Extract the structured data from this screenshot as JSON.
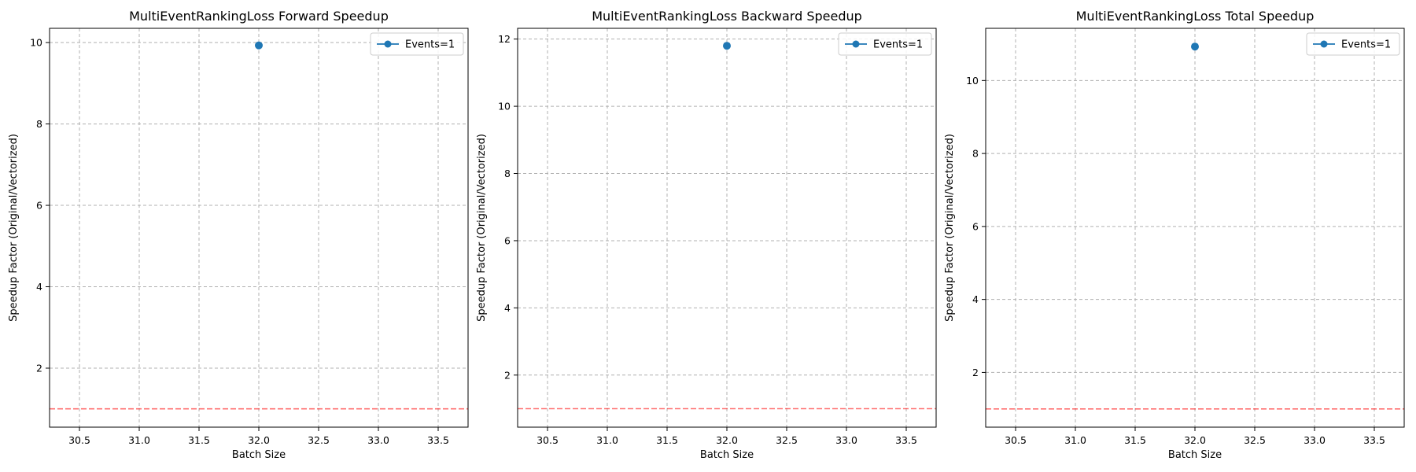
{
  "chart_data": [
    {
      "type": "line",
      "title": "MultiEventRankingLoss Forward Speedup",
      "xlabel": "Batch Size",
      "ylabel": "Speedup Factor (Original/Vectorized)",
      "xlim": [
        30.25,
        33.75
      ],
      "ylim": [
        0.55,
        10.35
      ],
      "xticks": [
        "30.5",
        "31.0",
        "31.5",
        "32.0",
        "32.5",
        "33.0",
        "33.5"
      ],
      "yticks": [
        "2",
        "4",
        "6",
        "8",
        "10"
      ],
      "grid": true,
      "legend_position": "top-right",
      "reference_line": {
        "y": 1.0,
        "color": "#ff0000",
        "style": "dashed"
      },
      "series": [
        {
          "name": "Events=1",
          "color": "#1f77b4",
          "x": [
            32
          ],
          "y": [
            9.93
          ]
        }
      ]
    },
    {
      "type": "line",
      "title": "MultiEventRankingLoss Backward Speedup",
      "xlabel": "Batch Size",
      "ylabel": "Speedup Factor (Original/Vectorized)",
      "xlim": [
        30.25,
        33.75
      ],
      "ylim": [
        0.45,
        12.32
      ],
      "xticks": [
        "30.5",
        "31.0",
        "31.5",
        "32.0",
        "32.5",
        "33.0",
        "33.5"
      ],
      "yticks": [
        "2",
        "4",
        "6",
        "8",
        "10",
        "12"
      ],
      "grid": true,
      "legend_position": "top-right",
      "reference_line": {
        "y": 1.0,
        "color": "#ff0000",
        "style": "dashed"
      },
      "series": [
        {
          "name": "Events=1",
          "color": "#1f77b4",
          "x": [
            32
          ],
          "y": [
            11.8
          ]
        }
      ]
    },
    {
      "type": "line",
      "title": "MultiEventRankingLoss Total Speedup",
      "xlabel": "Batch Size",
      "ylabel": "Speedup Factor (Original/Vectorized)",
      "xlim": [
        30.25,
        33.75
      ],
      "ylim": [
        0.5,
        11.43
      ],
      "xticks": [
        "30.5",
        "31.0",
        "31.5",
        "32.0",
        "32.5",
        "33.0",
        "33.5"
      ],
      "yticks": [
        "2",
        "4",
        "6",
        "8",
        "10"
      ],
      "grid": true,
      "legend_position": "top-right",
      "reference_line": {
        "y": 1.0,
        "color": "#ff0000",
        "style": "dashed"
      },
      "series": [
        {
          "name": "Events=1",
          "color": "#1f77b4",
          "x": [
            32
          ],
          "y": [
            10.93
          ]
        }
      ]
    }
  ]
}
